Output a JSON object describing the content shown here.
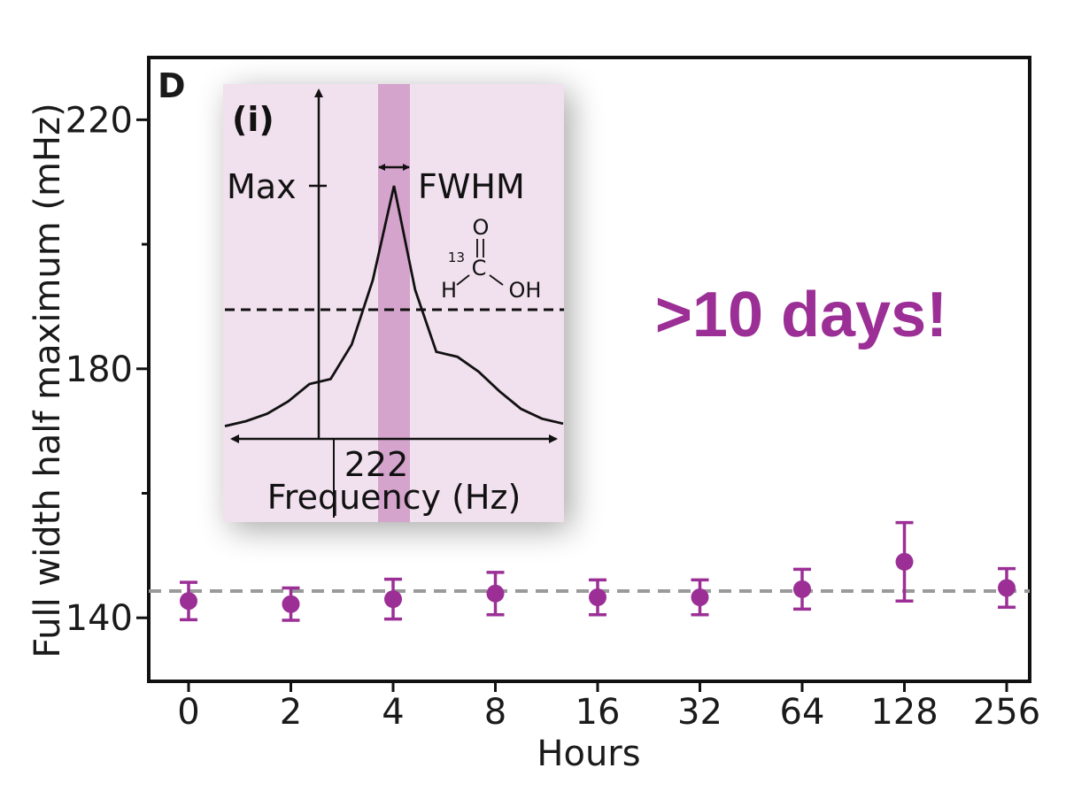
{
  "colors": {
    "accent": "#9b2f96",
    "reference_line": "#9a9a9a",
    "inset_background": "#f1e0ee",
    "inset_band": "#d5a4cc",
    "axis": "#111111"
  },
  "chart_data": {
    "type": "scatter",
    "panel_label": "D",
    "title": "",
    "xlabel": "Hours",
    "ylabel": "Full width half maximum (mHz)",
    "categories": [
      "0",
      "2",
      "4",
      "8",
      "16",
      "32",
      "64",
      "128",
      "256"
    ],
    "series": [
      {
        "name": "FWHM",
        "values": [
          142.7,
          142.2,
          143.0,
          143.9,
          143.3,
          143.3,
          144.6,
          149.0,
          144.8
        ],
        "error_upper": [
          3.0,
          2.6,
          3.2,
          3.4,
          2.8,
          2.8,
          3.2,
          6.3,
          3.1
        ],
        "error_lower": [
          3.0,
          2.6,
          3.2,
          3.4,
          2.8,
          2.8,
          3.2,
          6.3,
          3.1
        ]
      }
    ],
    "reference_line": 144.3,
    "ylim": [
      129.8,
      230
    ],
    "yticks": [
      140,
      180,
      220
    ],
    "y_minor_ticks": [
      160,
      200
    ],
    "grid": false,
    "annotation": ">10 days!",
    "inset": {
      "label": "(i)",
      "max_label": "Max",
      "fwhm_label": "FWHM",
      "x_tick_label": "222",
      "xlabel": "Frequency (Hz)",
      "molecule": {
        "oxygen": "O",
        "isotope": "13",
        "carbon": "C",
        "hydrogen": "H",
        "hydroxyl": "OH"
      },
      "spectrum": {
        "x": [
          -4.0,
          -3.5,
          -3.0,
          -2.5,
          -2.0,
          -1.5,
          -1.0,
          -0.5,
          0,
          0.5,
          1.0,
          1.5,
          2.0,
          2.5,
          3.0,
          3.5,
          4.0
        ],
        "y": [
          0.03,
          0.05,
          0.08,
          0.13,
          0.2,
          0.22,
          0.36,
          0.62,
          1.0,
          0.58,
          0.33,
          0.31,
          0.25,
          0.17,
          0.1,
          0.06,
          0.04
        ]
      }
    }
  }
}
